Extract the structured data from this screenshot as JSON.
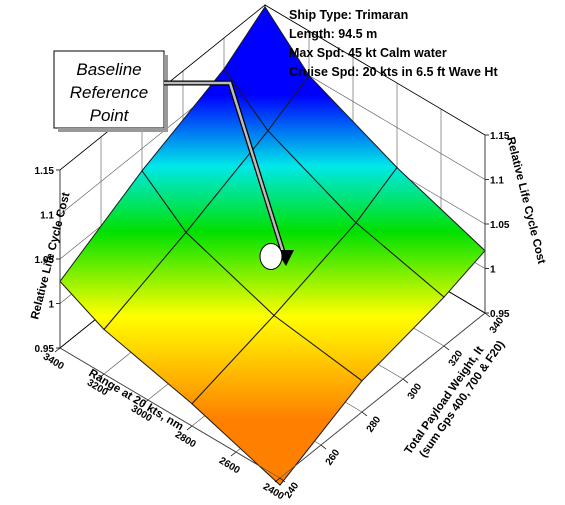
{
  "info": {
    "ship_type": "Ship Type: Trimaran",
    "length": "Length: 94.5 m",
    "max_speed": "Max Spd: 45 kt Calm water",
    "cruise_speed": "Cruise Spd: 20 kts in 6.5 ft Wave Ht"
  },
  "callout": {
    "line1": "Baseline",
    "line2": "Reference",
    "line3": "Point"
  },
  "colors": {
    "low": "#ff7f00",
    "mid_low": "#ffff00",
    "mid": "#00e000",
    "mid_high": "#00e8e8",
    "high": "#0000ff"
  },
  "chart_data": {
    "type": "surface3d",
    "title": "",
    "xlabel": "Range at 20 kts, nm",
    "ylabel": "Total Payload Weight, lt (sum Gps 400, 700 & F20)",
    "zlabel_left": "Relative Life Cycle Cost",
    "zlabel_right": "Relative Life Cycle Cost",
    "x_ticks": [
      "2400",
      "2600",
      "2800",
      "3000",
      "3200",
      "3400"
    ],
    "y_ticks": [
      "240",
      "260",
      "280",
      "300",
      "320",
      "340"
    ],
    "z_ticks": [
      "0.95",
      "1",
      "1.05",
      "1.1",
      "1.15"
    ],
    "zlim": [
      0.95,
      1.15
    ],
    "x": [
      2400,
      2800,
      3200,
      3400
    ],
    "y": [
      240,
      280,
      320,
      340
    ],
    "z": [
      [
        0.942,
        0.975,
        1.0,
        1.025
      ],
      [
        0.985,
        1.0,
        1.035,
        1.075
      ],
      [
        1.005,
        1.03,
        1.075,
        1.115
      ],
      [
        1.02,
        1.055,
        1.1,
        1.148
      ]
    ],
    "baseline_point": {
      "x": 3000,
      "y": 300,
      "z": 1.0
    }
  }
}
